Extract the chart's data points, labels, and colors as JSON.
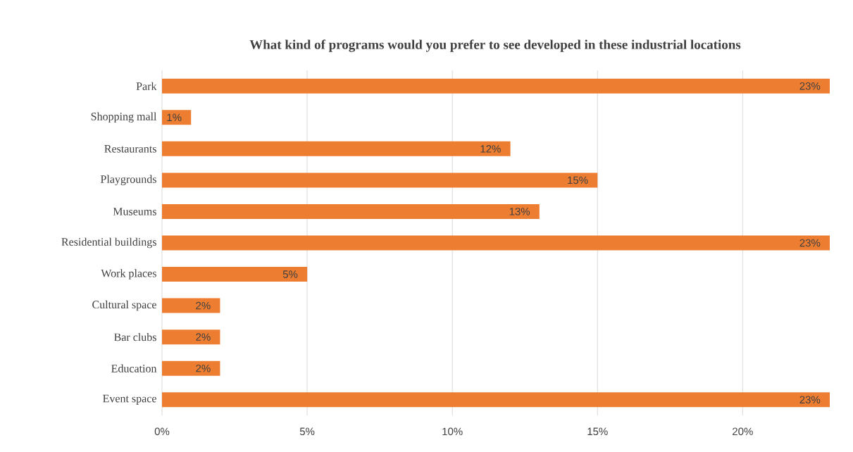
{
  "chart_data": {
    "type": "bar",
    "orientation": "horizontal",
    "title": "What kind  of programs would you prefer to see developed in  these industrial locations",
    "categories": [
      "Park",
      "Shopping mall",
      "Restaurants",
      "Playgrounds",
      "Museums",
      "Residential buildings",
      "Work places",
      "Cultural space",
      "Bar clubs",
      "Education",
      "Event space"
    ],
    "values": [
      23,
      1,
      12,
      15,
      13,
      23,
      5,
      2,
      2,
      2,
      23
    ],
    "value_labels": [
      "23%",
      "1%",
      "12%",
      "15%",
      "13%",
      "23%",
      "5%",
      "2%",
      "2%",
      "2%",
      "23%"
    ],
    "color": "#ed7d31",
    "xlim": [
      0,
      23
    ],
    "xticks": [
      {
        "value": 0,
        "label": "0%"
      },
      {
        "value": 5,
        "label": "5%"
      },
      {
        "value": 10,
        "label": "10%"
      },
      {
        "value": 15,
        "label": "15%"
      },
      {
        "value": 20,
        "label": "20%"
      }
    ],
    "grid": "x"
  }
}
